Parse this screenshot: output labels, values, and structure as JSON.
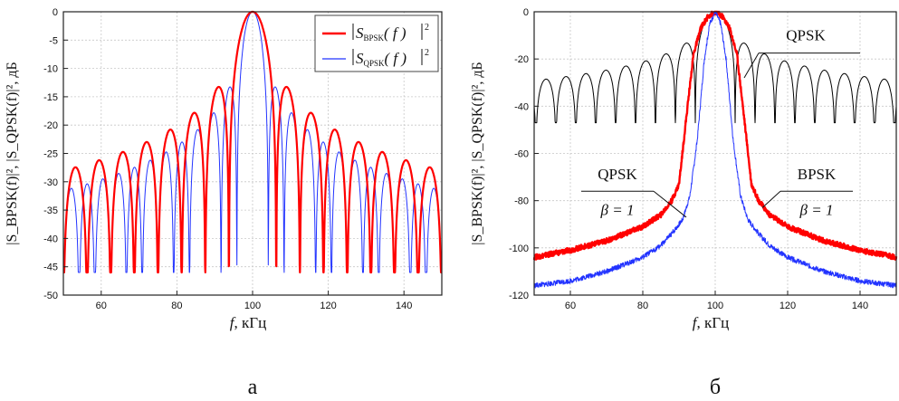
{
  "figure": {
    "panel_a_letter": "а",
    "panel_b_letter": "б"
  },
  "chart_data": [
    {
      "type": "line",
      "panel": "а",
      "xlabel_symbol": "f",
      "xlabel_unit": ",  кГц",
      "ylabel_text": "|S_BPSK(f)|², |S_QPSK(f)|²,  дБ",
      "ylabel_unit": "дБ",
      "xlim": [
        50,
        150
      ],
      "ylim": [
        -50,
        0
      ],
      "xticks": [
        60,
        80,
        100,
        120,
        140
      ],
      "yticks": [
        0,
        -5,
        -10,
        -15,
        -20,
        -25,
        -30,
        -35,
        -40,
        -45,
        -50
      ],
      "grid": true,
      "legend_position": "top-right",
      "series": [
        {
          "name": "|S_BPSK(f)|²",
          "name_main": "S",
          "name_sub": "BPSK",
          "color": "#ff0000",
          "model": "sinc2",
          "symbol_rate_khz": 6.25,
          "center_khz": 100,
          "floor_db": -46
        },
        {
          "name": "|S_QPSK(f)|²",
          "name_main": "S",
          "name_sub": "QPSK",
          "color": "#2233ff",
          "model": "sinc2",
          "symbol_rate_khz": 4.167,
          "center_khz": 100,
          "floor_db": -46
        }
      ]
    },
    {
      "type": "line",
      "panel": "б",
      "xlabel_symbol": "f",
      "xlabel_unit": ",  кГц",
      "ylabel_text": "|S_BPSK(f)|², |S_QPSK(f)|²,  дБ",
      "ylabel_unit": "дБ",
      "xlim": [
        50,
        150
      ],
      "ylim": [
        -120,
        0
      ],
      "xticks": [
        60,
        80,
        100,
        120,
        140
      ],
      "yticks": [
        0,
        -20,
        -40,
        -60,
        -80,
        -100,
        -120
      ],
      "grid": true,
      "series": [
        {
          "label": "QPSK",
          "color": "#000000",
          "model": "sinc2",
          "symbol_rate_khz": 5.5,
          "center_khz": 100,
          "floor_db": -47
        },
        {
          "label": "BPSK β=1",
          "color": "#ff0000",
          "model": "filtered",
          "points": [
            [
              50,
              -104
            ],
            [
              60,
              -101
            ],
            [
              70,
              -97
            ],
            [
              80,
              -91
            ],
            [
              85,
              -86
            ],
            [
              88,
              -80
            ],
            [
              90,
              -73
            ],
            [
              92,
              -45
            ],
            [
              94,
              -18
            ],
            [
              96,
              -7
            ],
            [
              98,
              -2
            ],
            [
              100,
              0
            ],
            [
              102,
              -2
            ],
            [
              104,
              -7
            ],
            [
              106,
              -18
            ],
            [
              108,
              -45
            ],
            [
              110,
              -73
            ],
            [
              112,
              -80
            ],
            [
              115,
              -86
            ],
            [
              120,
              -91
            ],
            [
              130,
              -97
            ],
            [
              140,
              -101
            ],
            [
              150,
              -104
            ]
          ]
        },
        {
          "label": "QPSK β=1",
          "color": "#2233ff",
          "model": "filtered",
          "points": [
            [
              50,
              -116
            ],
            [
              60,
              -114
            ],
            [
              70,
              -110
            ],
            [
              80,
              -104
            ],
            [
              85,
              -99
            ],
            [
              88,
              -94
            ],
            [
              91,
              -88
            ],
            [
              93,
              -78
            ],
            [
              95,
              -55
            ],
            [
              97,
              -20
            ],
            [
              98.5,
              -5
            ],
            [
              100,
              0
            ],
            [
              101.5,
              -5
            ],
            [
              103,
              -20
            ],
            [
              105,
              -55
            ],
            [
              107,
              -78
            ],
            [
              109,
              -88
            ],
            [
              112,
              -94
            ],
            [
              115,
              -99
            ],
            [
              120,
              -104
            ],
            [
              130,
              -110
            ],
            [
              140,
              -114
            ],
            [
              150,
              -116
            ]
          ]
        }
      ],
      "annotations": [
        {
          "text": "QPSK",
          "target": [
            108,
            -28
          ]
        },
        {
          "text_top": "QPSK",
          "text_bottom": "β = 1",
          "target": [
            92,
            -87
          ]
        },
        {
          "text_top": "BPSK",
          "text_bottom": "β = 1",
          "target": [
            113,
            -83
          ]
        }
      ]
    }
  ]
}
